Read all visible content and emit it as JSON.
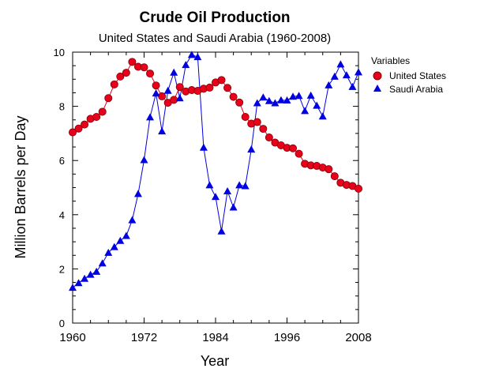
{
  "chart_data": {
    "type": "line",
    "title": "Crude Oil Production",
    "subtitle": "United States and Saudi Arabia (1960-2008)",
    "xlabel": "Year",
    "ylabel": "Million Barrels per Day",
    "xlim": [
      1960,
      2008
    ],
    "ylim": [
      0,
      10
    ],
    "xticks": [
      "1960",
      "1972",
      "1984",
      "1996",
      "2008"
    ],
    "yticks": [
      "0",
      "2",
      "4",
      "6",
      "8",
      "10"
    ],
    "legend_title": "Variables",
    "x": [
      1960,
      1961,
      1962,
      1963,
      1964,
      1965,
      1966,
      1967,
      1968,
      1969,
      1970,
      1971,
      1972,
      1973,
      1974,
      1975,
      1976,
      1977,
      1978,
      1979,
      1980,
      1981,
      1982,
      1983,
      1984,
      1985,
      1986,
      1987,
      1988,
      1989,
      1990,
      1991,
      1992,
      1993,
      1994,
      1995,
      1996,
      1997,
      1998,
      1999,
      2000,
      2001,
      2002,
      2003,
      2004,
      2005,
      2006,
      2007,
      2008
    ],
    "series": [
      {
        "name": "United States",
        "color": "#e8001c",
        "marker": "circle",
        "values": [
          7.04,
          7.18,
          7.33,
          7.54,
          7.61,
          7.8,
          8.3,
          8.81,
          9.1,
          9.24,
          9.64,
          9.46,
          9.44,
          9.21,
          8.77,
          8.37,
          8.13,
          8.24,
          8.71,
          8.55,
          8.6,
          8.57,
          8.65,
          8.69,
          8.88,
          8.97,
          8.68,
          8.35,
          8.14,
          7.61,
          7.36,
          7.42,
          7.17,
          6.85,
          6.66,
          6.56,
          6.47,
          6.45,
          6.25,
          5.88,
          5.82,
          5.8,
          5.74,
          5.68,
          5.42,
          5.18,
          5.1,
          5.06,
          4.96
        ]
      },
      {
        "name": "Saudi Arabia",
        "color": "#0000e0",
        "marker": "triangle",
        "values": [
          1.31,
          1.48,
          1.64,
          1.79,
          1.9,
          2.21,
          2.6,
          2.81,
          3.04,
          3.22,
          3.8,
          4.77,
          6.02,
          7.6,
          8.48,
          7.08,
          8.58,
          9.25,
          8.3,
          9.53,
          9.9,
          9.82,
          6.48,
          5.09,
          4.66,
          3.39,
          4.87,
          4.27,
          5.09,
          5.06,
          6.41,
          8.12,
          8.33,
          8.2,
          8.12,
          8.23,
          8.22,
          8.36,
          8.39,
          7.83,
          8.4,
          8.03,
          7.63,
          8.78,
          9.1,
          9.55,
          9.15,
          8.72,
          9.26
        ]
      }
    ]
  }
}
